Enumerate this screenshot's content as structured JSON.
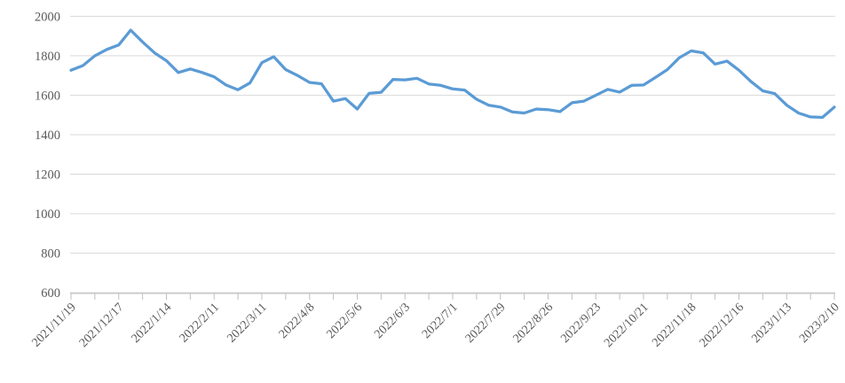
{
  "chart_data": {
    "type": "line",
    "title": "",
    "xlabel": "",
    "ylabel": "",
    "legend": "none",
    "grid": true,
    "ylim": [
      600,
      2000
    ],
    "y_tick_step": 200,
    "x_label_every": 4,
    "x_minor_tick_every": 2,
    "series_name": "price",
    "x": [
      "2021/11/19",
      "2021/11/26",
      "2021/12/3",
      "2021/12/10",
      "2021/12/17",
      "2021/12/24",
      "2021/12/31",
      "2022/1/7",
      "2022/1/14",
      "2022/1/21",
      "2022/1/28",
      "2022/2/4",
      "2022/2/11",
      "2022/2/18",
      "2022/2/25",
      "2022/3/4",
      "2022/3/11",
      "2022/3/18",
      "2022/3/25",
      "2022/4/1",
      "2022/4/8",
      "2022/4/15",
      "2022/4/22",
      "2022/4/29",
      "2022/5/6",
      "2022/5/13",
      "2022/5/20",
      "2022/5/27",
      "2022/6/3",
      "2022/6/10",
      "2022/6/17",
      "2022/6/24",
      "2022/7/1",
      "2022/7/8",
      "2022/7/15",
      "2022/7/22",
      "2022/7/29",
      "2022/8/5",
      "2022/8/12",
      "2022/8/19",
      "2022/8/26",
      "2022/9/2",
      "2022/9/9",
      "2022/9/16",
      "2022/9/23",
      "2022/9/30",
      "2022/10/7",
      "2022/10/14",
      "2022/10/21",
      "2022/10/28",
      "2022/11/4",
      "2022/11/11",
      "2022/11/18",
      "2022/11/25",
      "2022/12/2",
      "2022/12/9",
      "2022/12/16",
      "2022/12/23",
      "2022/12/30",
      "2023/1/6",
      "2023/1/13",
      "2023/1/20",
      "2023/1/27",
      "2023/2/3",
      "2023/2/10"
    ],
    "values": [
      1727,
      1750,
      1800,
      1832,
      1855,
      1930,
      1870,
      1815,
      1775,
      1715,
      1733,
      1715,
      1693,
      1652,
      1628,
      1662,
      1765,
      1795,
      1730,
      1700,
      1665,
      1658,
      1570,
      1583,
      1530,
      1610,
      1615,
      1680,
      1678,
      1686,
      1657,
      1650,
      1632,
      1626,
      1580,
      1550,
      1540,
      1515,
      1510,
      1530,
      1527,
      1517,
      1562,
      1570,
      1600,
      1630,
      1616,
      1650,
      1652,
      1690,
      1730,
      1790,
      1825,
      1815,
      1758,
      1773,
      1727,
      1670,
      1622,
      1608,
      1550,
      1510,
      1490,
      1488,
      1540
    ],
    "colors": {
      "series": "#5B9BD5",
      "gridline": "#D9D9D9",
      "axis_line": "#BFBFBF",
      "tick_label": "#595959",
      "background": "#FFFFFF"
    }
  }
}
